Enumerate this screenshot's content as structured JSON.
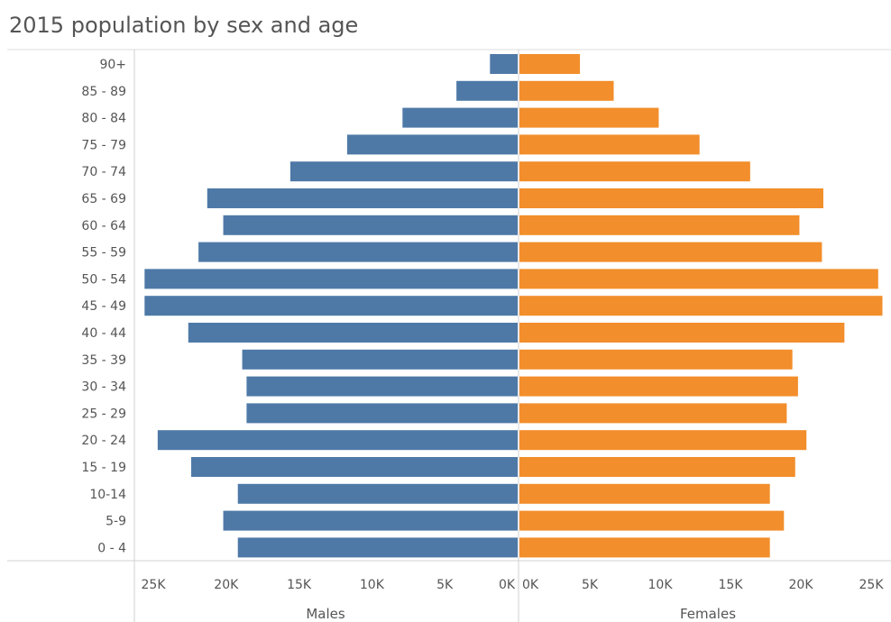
{
  "chart_data": {
    "type": "bar",
    "orientation": "horizontal-pyramid",
    "title": "2015 population by sex and age",
    "categories": [
      "90+",
      "85 - 89",
      "80 - 84",
      "75 - 79",
      "70 - 74",
      "65 - 69",
      "60 - 64",
      "55 - 59",
      "50 - 54",
      "45 - 49",
      "40 - 44",
      "35 - 39",
      "30 - 34",
      "25 - 29",
      "20 - 24",
      "15 - 19",
      "10-14",
      "5-9",
      "0 - 4"
    ],
    "series": [
      {
        "name": "Males",
        "color": "#4e79a7",
        "values": [
          1900,
          4200,
          7900,
          11700,
          15600,
          21300,
          20200,
          21900,
          25600,
          25600,
          22600,
          18900,
          18600,
          18600,
          24700,
          22400,
          19200,
          20200,
          19200
        ]
      },
      {
        "name": "Females",
        "color": "#f28e2b",
        "values": [
          4300,
          6700,
          9900,
          12800,
          16400,
          21600,
          19900,
          21500,
          25500,
          25800,
          23100,
          19400,
          19800,
          19000,
          20400,
          19600,
          17800,
          18800,
          17800
        ]
      }
    ],
    "male_axis": {
      "label": "Males",
      "ticks": [
        "25K",
        "20K",
        "15K",
        "10K",
        "5K",
        "0K"
      ],
      "range": [
        0,
        25000
      ]
    },
    "female_axis": {
      "label": "Females",
      "ticks": [
        "0K",
        "5K",
        "10K",
        "15K",
        "20K",
        "25K"
      ],
      "range": [
        0,
        25000
      ]
    },
    "grid": false
  }
}
